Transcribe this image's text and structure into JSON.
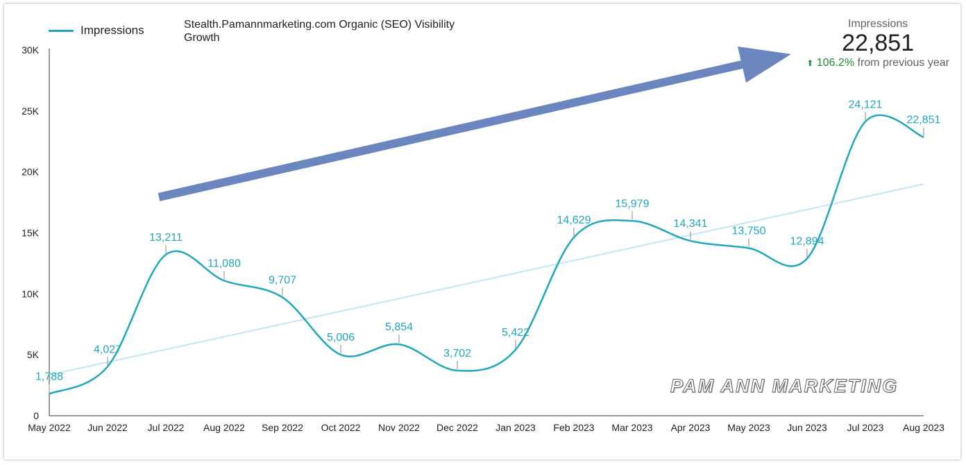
{
  "legend": {
    "label": "Impressions"
  },
  "chart_title": "Stealth.Pamannmarketing.com Organic (SEO) Visibility Growth",
  "scorecard": {
    "label": "Impressions",
    "value": "22,851",
    "delta_pct": "106.2%",
    "delta_text": "from previous year",
    "delta_icon": "up-arrow-icon"
  },
  "watermark": "PAM ANN MARKETING",
  "colors": {
    "series": "#1ea7bd",
    "trend": "#bfe7ef",
    "arrow": "#6b86bf",
    "delta": "#1e8e3e"
  },
  "chart_data": {
    "type": "line",
    "title": "Stealth.Pamannmarketing.com Organic (SEO) Visibility Growth",
    "xlabel": "",
    "ylabel": "",
    "ylim": [
      0,
      30000
    ],
    "yticks": [
      "0",
      "5K",
      "10K",
      "15K",
      "20K",
      "25K",
      "30K"
    ],
    "ytick_values": [
      0,
      5000,
      10000,
      15000,
      20000,
      25000,
      30000
    ],
    "categories": [
      "May 2022",
      "Jun 2022",
      "Jul 2022",
      "Aug 2022",
      "Sep 2022",
      "Oct 2022",
      "Nov 2022",
      "Dec 2022",
      "Jan 2023",
      "Feb 2023",
      "Mar 2023",
      "Apr 2023",
      "May 2023",
      "Jun 2023",
      "Jul 2023",
      "Aug 2023"
    ],
    "series": [
      {
        "name": "Impressions",
        "values": [
          1788,
          4027,
          13211,
          11080,
          9707,
          5006,
          5854,
          3702,
          5422,
          14629,
          15979,
          14341,
          13750,
          12894,
          24121,
          22851
        ],
        "labels": [
          "1,788",
          "4,027",
          "13,211",
          "11,080",
          "9,707",
          "5,006",
          "5,854",
          "3,702",
          "5,422",
          "14,629",
          "15,979",
          "14,341",
          "13,750",
          "12,894",
          "24,121",
          "22,851"
        ]
      }
    ],
    "trendline": {
      "start": 3350,
      "end": 19000
    },
    "legend_position": "top-left"
  }
}
